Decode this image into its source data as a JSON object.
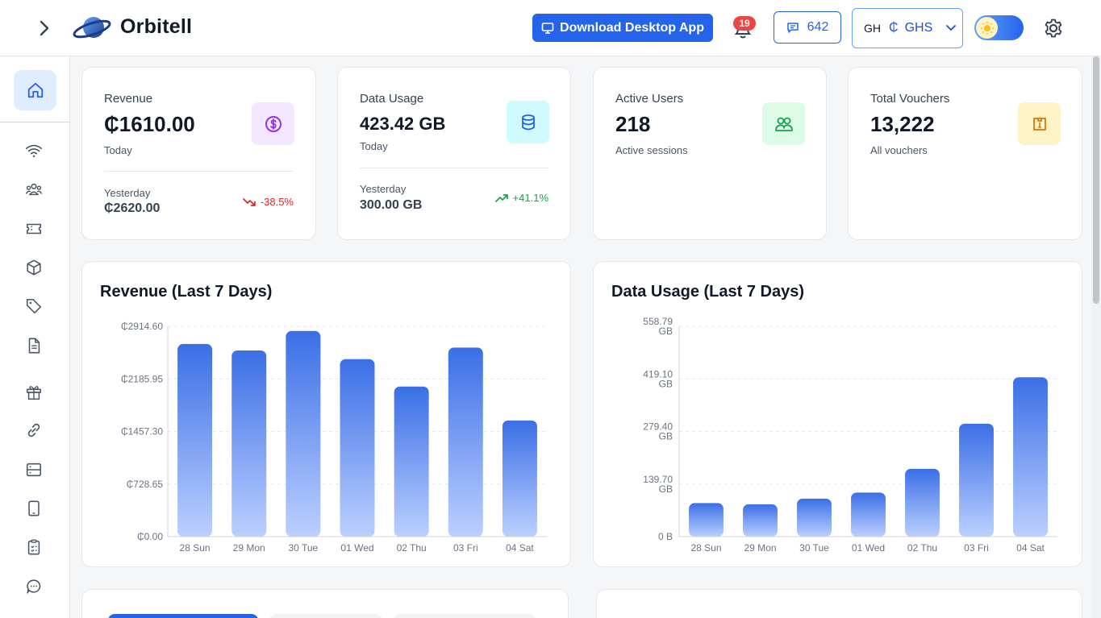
{
  "header": {
    "brand": "Orbitell",
    "download_label": "Download Desktop App",
    "notifications_count": "19",
    "messages_count": "642",
    "currency_code": "GH",
    "currency_symbol": "₵",
    "currency_name": "GHS"
  },
  "sidebar": {
    "items": [
      {
        "name": "home-icon",
        "active": true
      },
      {
        "name": "wifi-icon"
      },
      {
        "name": "users-icon"
      },
      {
        "name": "ticket-icon"
      },
      {
        "name": "package-icon"
      },
      {
        "name": "tag-icon"
      },
      {
        "name": "document-icon"
      },
      {
        "name": "gift-icon"
      },
      {
        "name": "link-icon"
      },
      {
        "name": "server-icon"
      },
      {
        "name": "tablet-icon"
      },
      {
        "name": "clipboard-icon"
      },
      {
        "name": "chat-icon"
      }
    ]
  },
  "stats": {
    "revenue": {
      "label": "Revenue",
      "value": "₵1610.00",
      "sub": "Today",
      "yesterday_label": "Yesterday",
      "yesterday_value": "₵2620.00",
      "trend": "-38.5%",
      "trend_color": "#dc2626",
      "icon": "dollar-icon"
    },
    "data_usage": {
      "label": "Data Usage",
      "value": "423.42 GB",
      "sub": "Today",
      "yesterday_label": "Yesterday",
      "yesterday_value": "300.00 GB",
      "trend": "+41.1%",
      "trend_color": "#16a34a",
      "icon": "database-icon"
    },
    "active_users": {
      "label": "Active Users",
      "value": "218",
      "sub": "Active sessions",
      "icon": "users-icon"
    },
    "vouchers": {
      "label": "Total Vouchers",
      "value": "13,222",
      "sub": "All vouchers",
      "icon": "voucher-icon"
    }
  },
  "chart_data": [
    {
      "type": "bar",
      "title": "Revenue (Last 7 Days)",
      "categories": [
        "28 Sun",
        "29 Mon",
        "30 Tue",
        "01 Wed",
        "02 Thu",
        "03 Fri",
        "04 Sat"
      ],
      "values": [
        2670,
        2580,
        2850,
        2460,
        2080,
        2620,
        1610
      ],
      "yticks": [
        "₵0.00",
        "₵728.65",
        "₵1457.30",
        "₵2185.95",
        "₵2914.60"
      ],
      "ylim": [
        0,
        2914.6
      ],
      "grid": true
    },
    {
      "type": "bar",
      "title": "Data Usage (Last 7 Days)",
      "categories": [
        "28 Sun",
        "29 Mon",
        "30 Tue",
        "01 Wed",
        "02 Thu",
        "03 Fri",
        "04 Sat"
      ],
      "values": [
        89,
        86,
        101,
        117,
        180,
        300,
        423.42
      ],
      "yticks": [
        [
          "0 B",
          ""
        ],
        [
          "139.70",
          "GB"
        ],
        [
          "279.40",
          "GB"
        ],
        [
          "419.10",
          "GB"
        ],
        [
          "558.79",
          "GB"
        ]
      ],
      "ylim": [
        0,
        558.79
      ],
      "grid": true
    }
  ]
}
